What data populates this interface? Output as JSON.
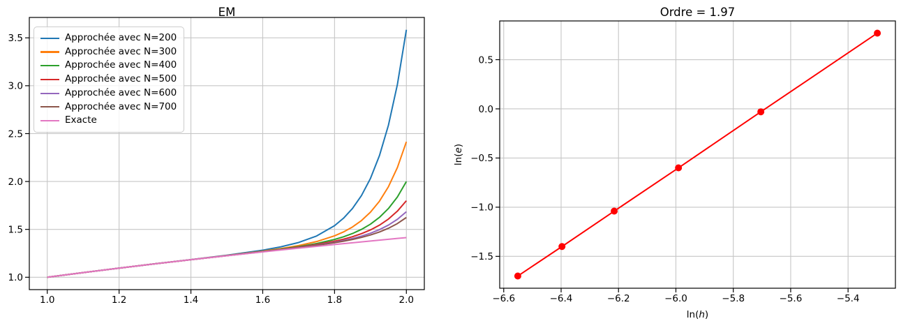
{
  "figure": {
    "background": "#ffffff"
  },
  "chart_data": [
    {
      "type": "line",
      "title": "EM",
      "grid": true,
      "legend_position": "upper-left",
      "xlim": [
        0.95,
        2.05
      ],
      "ylim": [
        0.871,
        3.713
      ],
      "xticks": {
        "values": [
          1.0,
          1.2,
          1.4,
          1.6,
          1.8,
          2.0
        ],
        "labels": [
          "1.0",
          "1.2",
          "1.4",
          "1.6",
          "1.8",
          "2.0"
        ]
      },
      "yticks": {
        "values": [
          1.0,
          1.5,
          2.0,
          2.5,
          3.0,
          3.5
        ],
        "labels": [
          "1.0",
          "1.5",
          "2.0",
          "2.5",
          "3.0",
          "3.5"
        ]
      },
      "x": [
        1.0,
        1.1,
        1.2,
        1.3,
        1.4,
        1.5,
        1.6,
        1.65,
        1.7,
        1.75,
        1.8,
        1.825,
        1.85,
        1.875,
        1.9,
        1.925,
        1.95,
        1.975,
        2.0
      ],
      "series": [
        {
          "name": "Approchée avec N=200",
          "color": "#1f77b4",
          "values": [
            1.0,
            1.0488,
            1.0956,
            1.1407,
            1.1848,
            1.2301,
            1.2828,
            1.3171,
            1.363,
            1.431,
            1.5384,
            1.6167,
            1.7188,
            1.8534,
            2.032,
            2.2698,
            2.5873,
            3.0128,
            3.5842
          ]
        },
        {
          "name": "Approchée avec N=300",
          "color": "#ff7f0e",
          "values": [
            1.0,
            1.0488,
            1.0955,
            1.1404,
            1.1839,
            1.2272,
            1.2731,
            1.2995,
            1.3311,
            1.3727,
            1.4323,
            1.4734,
            1.5254,
            1.5924,
            1.6796,
            1.7941,
            1.9452,
            2.1461,
            2.4142
          ]
        },
        {
          "name": "Approchée avec N=400",
          "color": "#2ca02c",
          "values": [
            1.0,
            1.0488,
            1.0954,
            1.1403,
            1.1836,
            1.2262,
            1.2697,
            1.2933,
            1.3198,
            1.352,
            1.3947,
            1.4226,
            1.4568,
            1.4998,
            1.5546,
            1.6254,
            1.7175,
            1.8387,
            1.9992
          ]
        },
        {
          "name": "Approchée avec N=500",
          "color": "#d62728",
          "values": [
            1.0,
            1.0488,
            1.0954,
            1.1403,
            1.1835,
            1.2257,
            1.2681,
            1.2903,
            1.3143,
            1.3421,
            1.3765,
            1.3981,
            1.4237,
            1.4552,
            1.4944,
            1.544,
            1.6077,
            1.6905,
            1.7992
          ]
        },
        {
          "name": "Approchée avec N=600",
          "color": "#9467bd",
          "values": [
            1.0,
            1.0488,
            1.0954,
            1.1403,
            1.1834,
            1.2254,
            1.2671,
            1.2886,
            1.3112,
            1.3364,
            1.3661,
            1.384,
            1.4047,
            1.4295,
            1.4597,
            1.4973,
            1.5446,
            1.6053,
            1.6842
          ]
        },
        {
          "name": "Approchée avec N=700",
          "color": "#8c564b",
          "values": [
            1.0,
            1.0488,
            1.0954,
            1.1402,
            1.1834,
            1.2252,
            1.2666,
            1.2877,
            1.3095,
            1.3334,
            1.3607,
            1.3766,
            1.3948,
            1.4162,
            1.4417,
            1.4729,
            1.5117,
            1.5609,
            1.6242
          ]
        },
        {
          "name": "Exacte",
          "color": "#e377c2",
          "values": [
            1.0,
            1.0488,
            1.0954,
            1.1402,
            1.1832,
            1.2247,
            1.2649,
            1.2845,
            1.3038,
            1.3229,
            1.3416,
            1.3509,
            1.3601,
            1.3693,
            1.3784,
            1.3875,
            1.3964,
            1.4053,
            1.4142
          ]
        }
      ]
    },
    {
      "type": "line",
      "title": "Ordre = 1.97",
      "xlabel": "ln(h)",
      "ylabel": "ln(e)",
      "grid": true,
      "color": "#ff0000",
      "marker": "o",
      "xlim": [
        -6.614,
        -5.235
      ],
      "ylim": [
        -1.824,
        0.894
      ],
      "xticks": {
        "values": [
          -6.6,
          -6.4,
          -6.2,
          -6.0,
          -5.8,
          -5.6,
          -5.4
        ],
        "labels": [
          "−6.6",
          "−6.4",
          "−6.2",
          "−6.0",
          "−5.8",
          "−5.6",
          "−5.4"
        ]
      },
      "yticks": {
        "values": [
          0.5,
          0.0,
          -0.5,
          -1.0,
          -1.5
        ],
        "labels": [
          "0.5",
          "0.0",
          "−0.5",
          "−1.0",
          "−1.5"
        ]
      },
      "x": [
        -6.551,
        -6.397,
        -6.215,
        -5.991,
        -5.704,
        -5.298
      ],
      "y": [
        -1.7,
        -1.4,
        -1.04,
        -0.6,
        -0.03,
        0.77
      ]
    }
  ]
}
